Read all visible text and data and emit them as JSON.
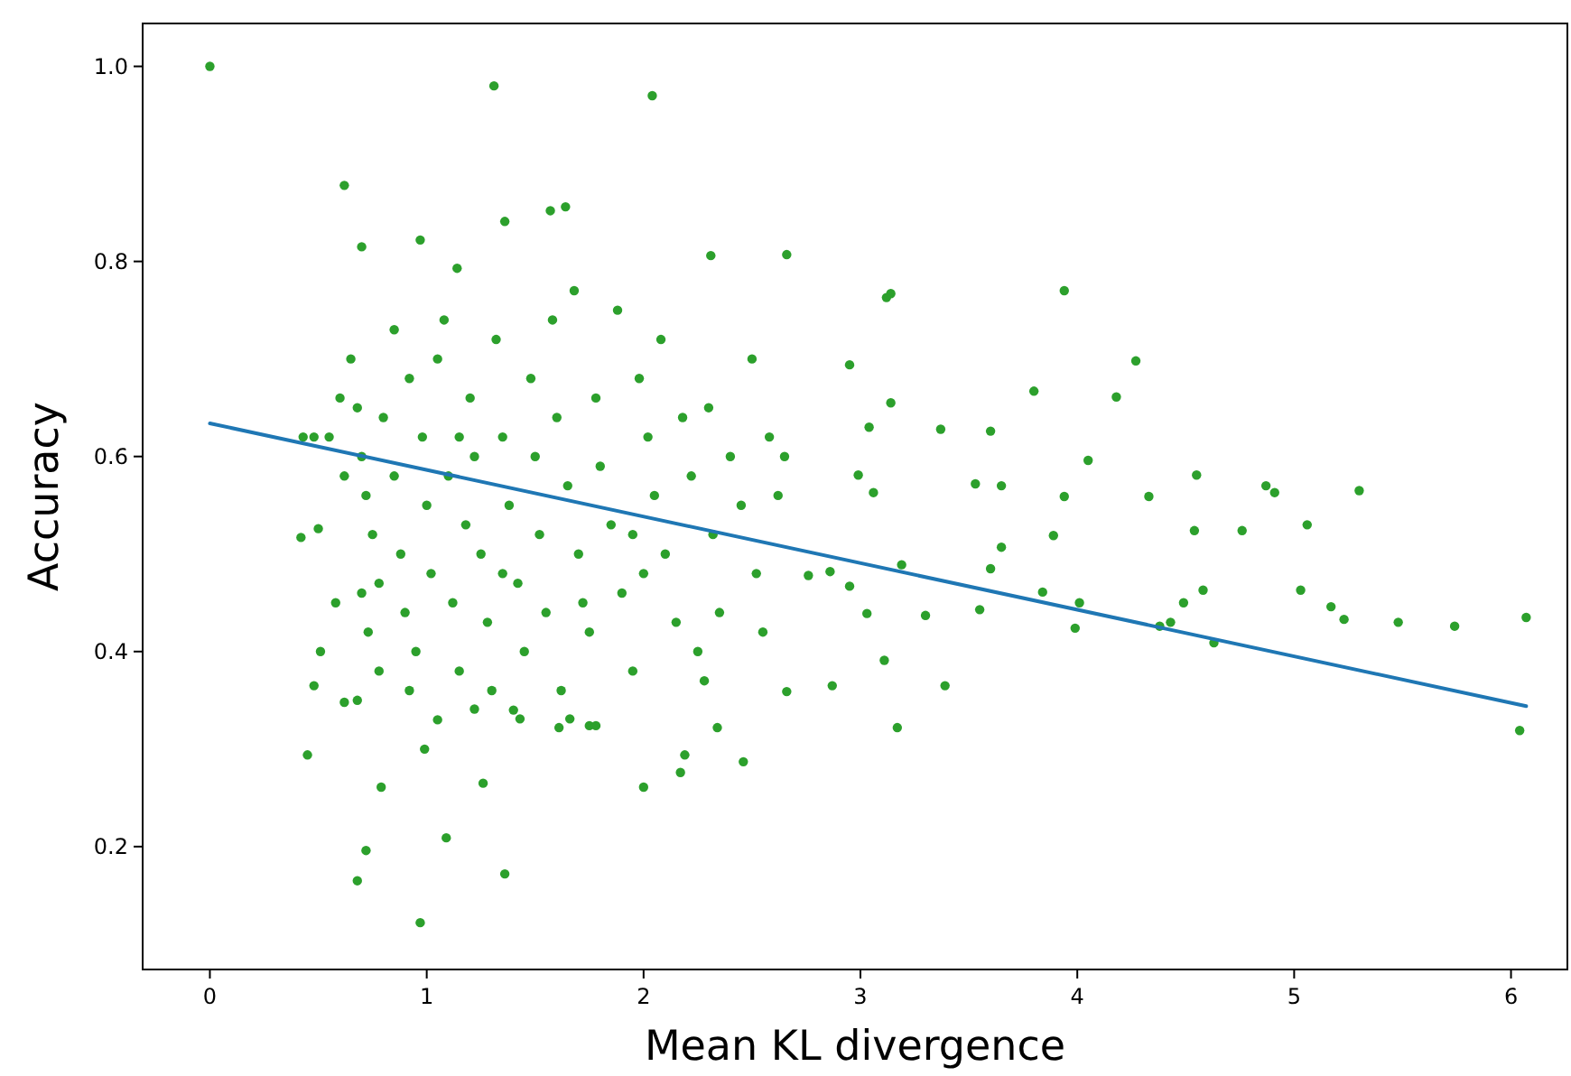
{
  "chart_data": {
    "type": "scatter",
    "xlabel": "Mean KL divergence",
    "ylabel": "Accuracy",
    "xlim": [
      -0.31,
      6.26
    ],
    "ylim": [
      0.074,
      1.044
    ],
    "xticks": [
      0,
      1,
      2,
      3,
      4,
      5,
      6
    ],
    "yticks": [
      0.2,
      0.4,
      0.6,
      0.8,
      {
        "value": 1.0,
        "label": "1.0"
      }
    ],
    "grid": false,
    "series": [
      {
        "marker": "circle",
        "color": "#2ca02c",
        "x": [
          0,
          1.31,
          2.04,
          0.62,
          0.97,
          1.64,
          1.57,
          1.36,
          0.7,
          1.14,
          2.31,
          2.66,
          3.94,
          3.12,
          3.14,
          4.27,
          2.95,
          3.8,
          4.18,
          3.14,
          3.37,
          3.6,
          4.05,
          4.55,
          4.87,
          4.91,
          5.3,
          3.94,
          4.33,
          3.53,
          3.65,
          3.06,
          2.99,
          3.04,
          5.06,
          4.54,
          4.76,
          3.65,
          3.89,
          3.6,
          2.86,
          3.19,
          3.84,
          4.58,
          5.03,
          5.17,
          5.23,
          5.48,
          5.74,
          6.07,
          4.63,
          4.38,
          4.01,
          3.99,
          4.43,
          4.49,
          6.04,
          3.39,
          3.17,
          3.11,
          2.87,
          3.55,
          3.3,
          3.03,
          2.95,
          2.76,
          2.66,
          2.46,
          2.19,
          2.0,
          2.17,
          2.34,
          0.45,
          0.79,
          1.26,
          1.09,
          0.72,
          0.68,
          1.36,
          0.97,
          0.99,
          1.61,
          1.75,
          1.78,
          1.66,
          1.43,
          1.22,
          0.62,
          0.48,
          0.51,
          0.58,
          0.42,
          0.5,
          0.48,
          0.43,
          0.65,
          0.68,
          0.7,
          0.72,
          0.75,
          0.7,
          0.73,
          0.78,
          0.68,
          0.8,
          0.85,
          0.88,
          0.9,
          0.95,
          0.92,
          0.98,
          1.0,
          1.02,
          1.05,
          1.08,
          1.1,
          1.12,
          1.15,
          1.18,
          1.2,
          1.22,
          1.25,
          1.28,
          1.3,
          1.32,
          1.35,
          1.38,
          1.42,
          1.45,
          1.48,
          1.5,
          1.52,
          1.55,
          1.58,
          1.6,
          1.65,
          1.68,
          1.7,
          1.75,
          1.78,
          1.8,
          1.85,
          1.88,
          1.9,
          1.95,
          1.98,
          2.02,
          2.05,
          2.08,
          2.1,
          2.15,
          2.18,
          2.22,
          2.25,
          2.3,
          2.32,
          2.35,
          2.4,
          2.45,
          2.5,
          2.52,
          2.55,
          2.58,
          2.62,
          2.65,
          0.85,
          0.78,
          1.05,
          0.62,
          0.55,
          0.6,
          1.4,
          1.72,
          2.0,
          0.92,
          1.15,
          1.35,
          1.62,
          2.28,
          1.95
        ],
        "values": [
          1.0,
          0.98,
          0.97,
          0.878,
          0.822,
          0.856,
          0.852,
          0.841,
          0.815,
          0.793,
          0.806,
          0.807,
          0.77,
          0.763,
          0.767,
          0.698,
          0.694,
          0.667,
          0.661,
          0.655,
          0.628,
          0.626,
          0.596,
          0.581,
          0.57,
          0.563,
          0.565,
          0.559,
          0.559,
          0.572,
          0.57,
          0.563,
          0.581,
          0.63,
          0.53,
          0.524,
          0.524,
          0.507,
          0.519,
          0.485,
          0.482,
          0.489,
          0.461,
          0.463,
          0.463,
          0.446,
          0.433,
          0.43,
          0.426,
          0.435,
          0.409,
          0.426,
          0.45,
          0.424,
          0.43,
          0.45,
          0.319,
          0.365,
          0.322,
          0.391,
          0.365,
          0.443,
          0.437,
          0.439,
          0.467,
          0.478,
          0.359,
          0.287,
          0.294,
          0.261,
          0.276,
          0.322,
          0.294,
          0.261,
          0.265,
          0.209,
          0.196,
          0.165,
          0.172,
          0.122,
          0.3,
          0.322,
          0.324,
          0.324,
          0.331,
          0.331,
          0.341,
          0.348,
          0.365,
          0.4,
          0.45,
          0.517,
          0.526,
          0.62,
          0.62,
          0.7,
          0.65,
          0.6,
          0.56,
          0.52,
          0.46,
          0.42,
          0.38,
          0.35,
          0.64,
          0.58,
          0.5,
          0.44,
          0.4,
          0.36,
          0.62,
          0.55,
          0.48,
          0.7,
          0.74,
          0.58,
          0.45,
          0.38,
          0.53,
          0.66,
          0.6,
          0.5,
          0.43,
          0.36,
          0.72,
          0.62,
          0.55,
          0.47,
          0.4,
          0.68,
          0.6,
          0.52,
          0.44,
          0.74,
          0.64,
          0.57,
          0.77,
          0.5,
          0.42,
          0.66,
          0.59,
          0.53,
          0.75,
          0.46,
          0.38,
          0.68,
          0.62,
          0.56,
          0.72,
          0.5,
          0.43,
          0.64,
          0.58,
          0.4,
          0.65,
          0.52,
          0.44,
          0.6,
          0.55,
          0.7,
          0.48,
          0.42,
          0.62,
          0.56,
          0.6,
          0.73,
          0.47,
          0.33,
          0.58,
          0.62,
          0.66,
          0.34,
          0.45,
          0.48,
          0.68,
          0.62,
          0.48,
          0.36,
          0.37,
          0.52
        ]
      },
      {
        "type": "line",
        "color": "#1f77b4",
        "x": [
          0,
          6.07
        ],
        "values": [
          0.634,
          0.344
        ]
      }
    ]
  }
}
